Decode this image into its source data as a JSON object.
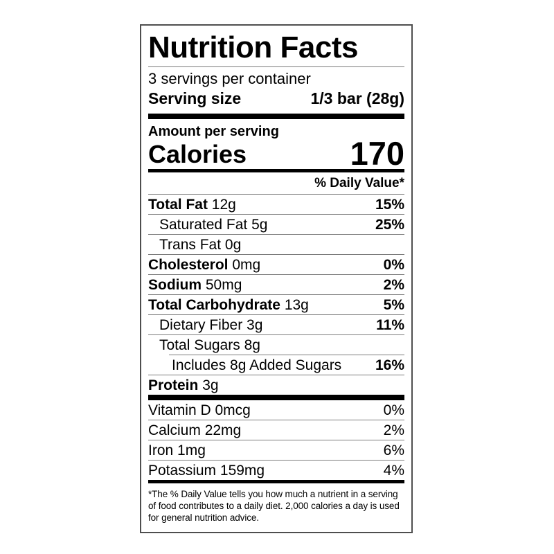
{
  "colors": {
    "text": "#000000",
    "hairline": "#7b7b7b",
    "thick_bar": "#000000",
    "border": "#4e4e4e",
    "background": "#ffffff"
  },
  "label": {
    "title": "Nutrition Facts",
    "servings_per_container": "3 servings per container",
    "serving_size": {
      "label": "Serving size",
      "value": "1/3 bar (28g)"
    },
    "amount_per_serving": "Amount per serving",
    "calories": {
      "label": "Calories",
      "value": "170"
    },
    "daily_value_header": "% Daily Value*",
    "nutrients": [
      {
        "name": "Total Fat",
        "amount": "12g",
        "dv": "15%",
        "bold": true,
        "indent": 0
      },
      {
        "name": "Saturated Fat",
        "amount": "5g",
        "dv": "25%",
        "bold": false,
        "indent": 1
      },
      {
        "name": "Trans Fat",
        "amount": "0g",
        "dv": "",
        "bold": false,
        "indent": 1
      },
      {
        "name": "Cholesterol",
        "amount": "0mg",
        "dv": "0%",
        "bold": true,
        "indent": 0
      },
      {
        "name": "Sodium",
        "amount": "50mg",
        "dv": "2%",
        "bold": true,
        "indent": 0
      },
      {
        "name": "Total Carbohydrate",
        "amount": "13g",
        "dv": "5%",
        "bold": true,
        "indent": 0
      },
      {
        "name": "Dietary Fiber",
        "amount": "3g",
        "dv": "11%",
        "bold": false,
        "indent": 1
      },
      {
        "name": "Total Sugars",
        "amount": "8g",
        "dv": "",
        "bold": false,
        "indent": 1
      },
      {
        "name": "Includes 8g Added Sugars",
        "amount": "",
        "dv": "16%",
        "bold": false,
        "indent": 2,
        "indent_rule": true
      },
      {
        "name": "Protein",
        "amount": "3g",
        "dv": "",
        "bold": true,
        "indent": 0
      }
    ],
    "micronutrients": [
      {
        "name": "Vitamin D",
        "amount": "0mcg",
        "dv": "0%",
        "bold": false,
        "indent": 0
      },
      {
        "name": "Calcium",
        "amount": "22mg",
        "dv": "2%",
        "bold": false,
        "indent": 0
      },
      {
        "name": "Iron",
        "amount": "1mg",
        "dv": "6%",
        "bold": false,
        "indent": 0
      },
      {
        "name": "Potassium",
        "amount": "159mg",
        "dv": "4%",
        "bold": false,
        "indent": 0
      }
    ],
    "footnote": "*The % Daily Value tells you how much a nutrient in a serving of food contributes to a daily diet. 2,000 calories a day is used for general nutrition advice."
  }
}
